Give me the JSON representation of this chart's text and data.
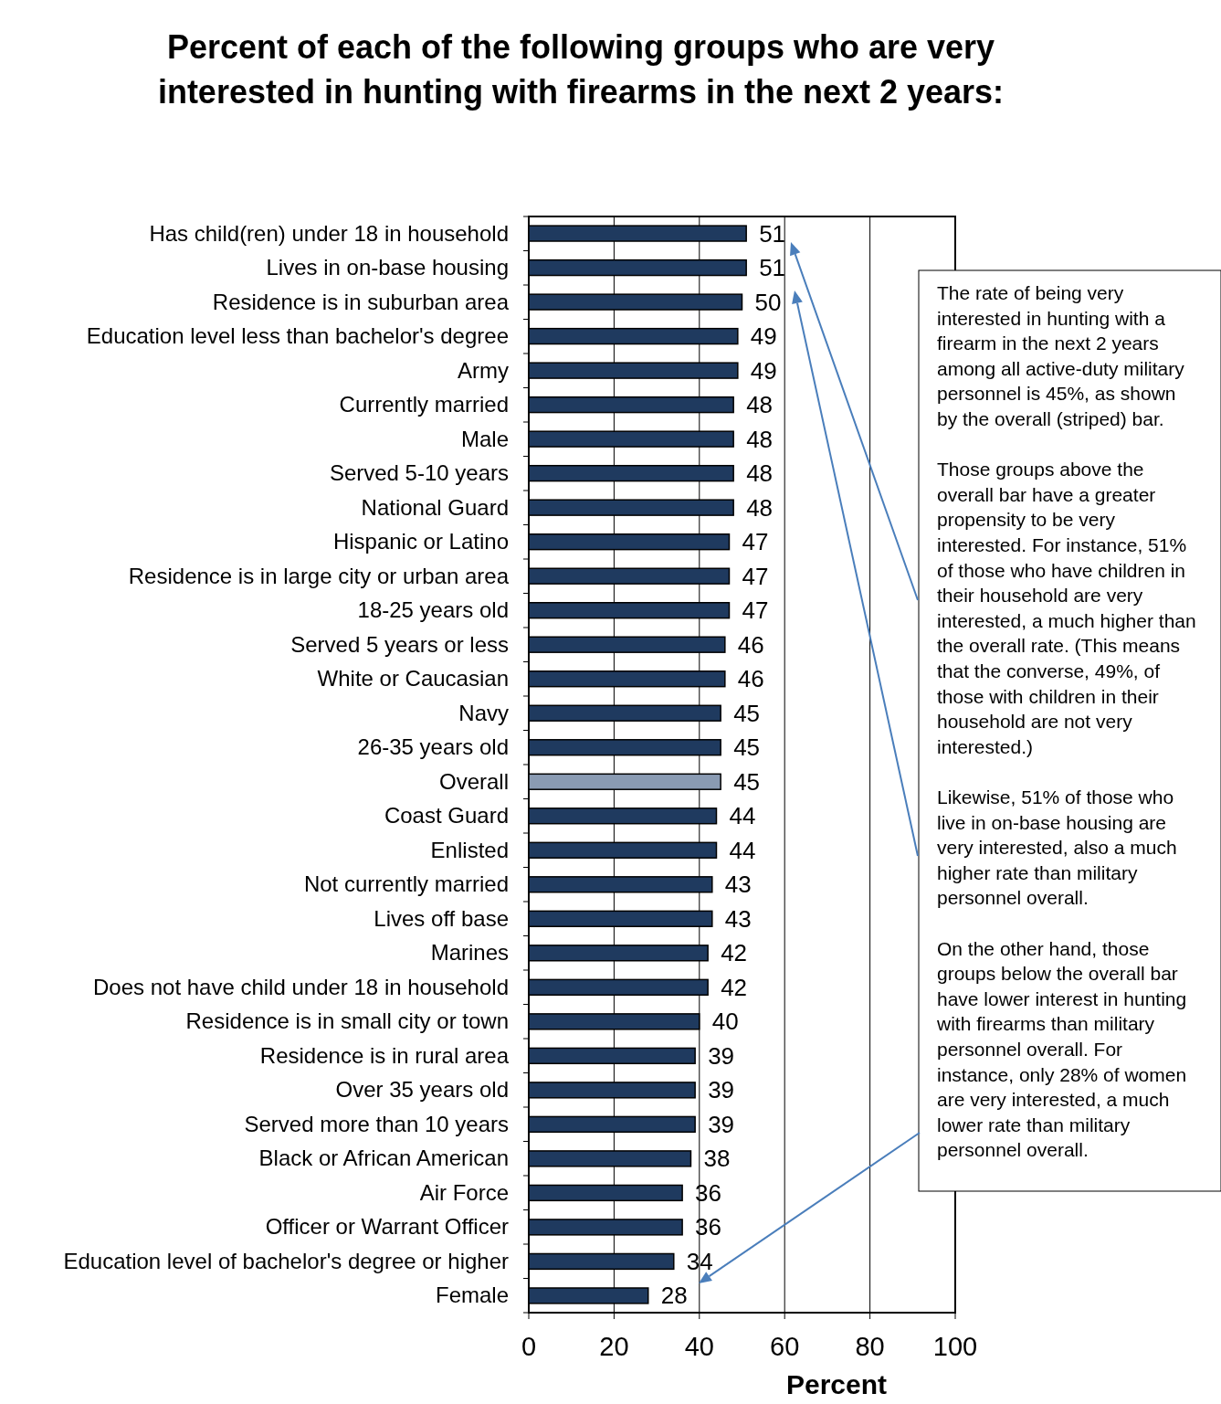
{
  "chart_data": {
    "type": "bar",
    "orientation": "horizontal",
    "title": "Percent of each of the following groups who are very interested in hunting with firearms in the next 2 years:",
    "xlabel": "Percent",
    "categories": [
      "Has child(ren) under 18 in household",
      "Lives in on-base housing",
      "Residence is in suburban area",
      "Education level less than bachelor's degree",
      "Army",
      "Currently married",
      "Male",
      "Served 5-10 years",
      "National Guard",
      "Hispanic or Latino",
      "Residence is in large city or urban area",
      "18-25 years old",
      "Served 5 years or less",
      "White or Caucasian",
      "Navy",
      "26-35 years old",
      "Overall",
      "Coast Guard",
      "Enlisted",
      "Not currently married",
      "Lives off base",
      "Marines",
      "Does not have child under 18 in household",
      "Residence is in small city or town",
      "Residence is in rural area",
      "Over 35 years old",
      "Served more than 10 years",
      "Black or African American",
      "Air Force",
      "Officer or Warrant Officer",
      "Education level of bachelor's degree or higher",
      "Female"
    ],
    "values": [
      51,
      51,
      50,
      49,
      49,
      48,
      48,
      48,
      48,
      47,
      47,
      47,
      46,
      46,
      45,
      45,
      45,
      44,
      44,
      43,
      43,
      42,
      42,
      40,
      39,
      39,
      39,
      38,
      36,
      36,
      34,
      28
    ],
    "colors": [
      "#1f3a5f",
      "#1f3a5f",
      "#1f3a5f",
      "#1f3a5f",
      "#1f3a5f",
      "#1f3a5f",
      "#1f3a5f",
      "#1f3a5f",
      "#1f3a5f",
      "#1f3a5f",
      "#1f3a5f",
      "#1f3a5f",
      "#1f3a5f",
      "#1f3a5f",
      "#1f3a5f",
      "#1f3a5f",
      "#8a9bb3",
      "#1f3a5f",
      "#1f3a5f",
      "#1f3a5f",
      "#1f3a5f",
      "#1f3a5f",
      "#1f3a5f",
      "#1f3a5f",
      "#1f3a5f",
      "#1f3a5f",
      "#1f3a5f",
      "#1f3a5f",
      "#1f3a5f",
      "#1f3a5f",
      "#1f3a5f",
      "#1f3a5f"
    ],
    "xlim": [
      0,
      100
    ],
    "xticks": [
      0,
      20,
      40,
      60,
      80,
      100
    ],
    "grid": "x",
    "data_labels": true,
    "annotations": [
      "The rate of being very interested in hunting with a firearm in the next 2 years among all active-duty military personnel is 45%, as shown by the overall (striped) bar.",
      "Those groups above the overall bar have a greater propensity to be very interested. For instance, 51% of those who have children in their household are very interested, a much higher than the overall rate. (This means that the converse, 49%, of those with children in their household are not very interested.)",
      "Likewise, 51% of those who live in on-base housing are very interested, also a much higher rate than military personnel overall.",
      "On the other hand, those groups below the overall bar have lower interest in hunting with firearms than military personnel overall. For instance, only 28% of women are very interested, a much lower rate than military personnel overall."
    ]
  }
}
